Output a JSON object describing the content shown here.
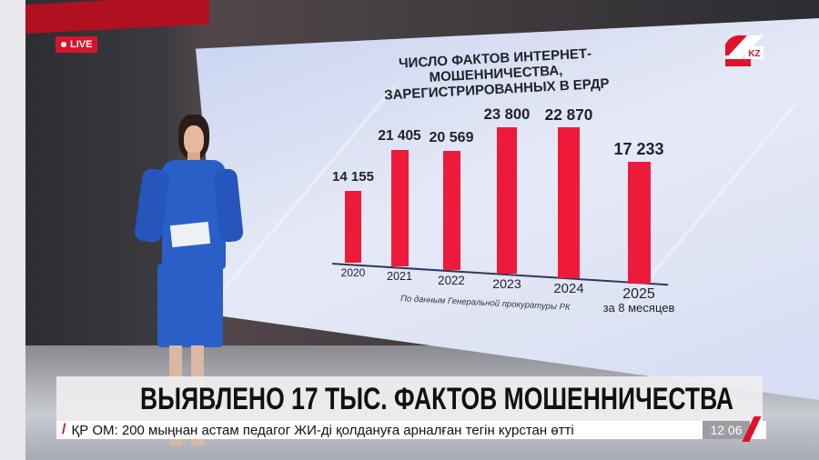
{
  "overlay": {
    "live_label": "LIVE",
    "logo_text": "KZ",
    "clock": "12 06"
  },
  "headline": "ВЫЯВЛЕНО 17 ТЫС. ФАКТОВ МОШЕННИЧЕСТВА",
  "ticker": "ҚР ОМ: 200 мыңнан астам педагог ЖИ-ді қолдануға арналған тегін курстан өтті",
  "colors": {
    "bar": "#ee1a3a",
    "live": "#d8142a",
    "ticker_accent": "#e0132a"
  },
  "chart_data": {
    "type": "bar",
    "title": "ЧИСЛО ФАКТОВ ИНТЕРНЕТ-МОШЕННИЧЕСТВА, ЗАРЕГИСТРИРОВАННЫХ В ЕРДР",
    "title_lines": [
      "ЧИСЛО ФАКТОВ ИНТЕРНЕТ-МОШЕННИЧЕСТВА,",
      "ЗАРЕГИСТРИРОВАННЫХ В ЕРДР"
    ],
    "categories": [
      "2020",
      "2021",
      "2022",
      "2023",
      "2024",
      "2025"
    ],
    "category_notes": [
      "",
      "",
      "",
      "",
      "",
      "за 8 месяцев"
    ],
    "values": [
      14155,
      21405,
      20569,
      23800,
      22870,
      17233
    ],
    "value_labels": [
      "14 155",
      "21 405",
      "20 569",
      "23 800",
      "22 870",
      "17 233"
    ],
    "source": "По данным Генеральной прокуратуры РК",
    "grid": false
  }
}
